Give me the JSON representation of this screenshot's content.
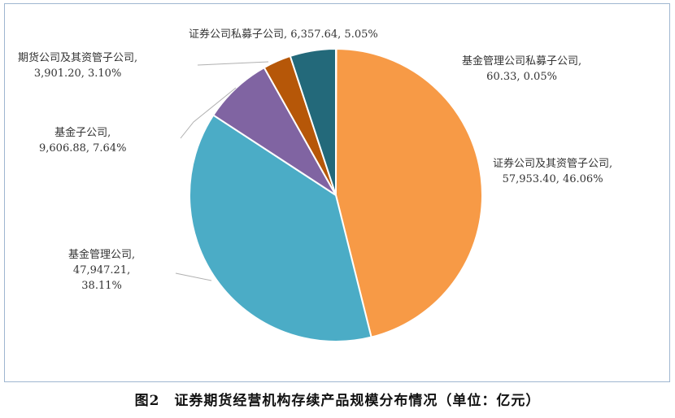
{
  "chart_data": {
    "type": "pie",
    "start_angle": "12 o'clock",
    "direction": "clockwise",
    "unit": "亿元",
    "slices": [
      {
        "name": "基金管理公司私募子公司",
        "value": 60.33,
        "value_label": "60.33",
        "percent": 0.05,
        "percent_label": "0.05%",
        "color": "#E9E9E9"
      },
      {
        "name": "证券公司及其资管子公司",
        "value": 57953.4,
        "value_label": "57,953.40",
        "percent": 46.06,
        "percent_label": "46.06%",
        "color": "#F79A46"
      },
      {
        "name": "基金管理公司",
        "value": 47947.21,
        "value_label": "47,947.21",
        "percent": 38.11,
        "percent_label": "38.11%",
        "color": "#4BACC6"
      },
      {
        "name": "基金子公司",
        "value": 9606.88,
        "value_label": "9,606.88",
        "percent": 7.64,
        "percent_label": "7.64%",
        "color": "#8064A2"
      },
      {
        "name": "期货公司及其资管子公司",
        "value": 3901.2,
        "value_label": "3,901.20",
        "percent": 3.1,
        "percent_label": "3.10%",
        "color": "#B65708"
      },
      {
        "name": "证券公司私募子公司",
        "value": 6357.64,
        "value_label": "6,357.64",
        "percent": 5.05,
        "percent_label": "5.05%",
        "color": "#23697A"
      }
    ],
    "labels": {
      "s0_line1": "基金管理公司私募子公司,",
      "s0_line2": "60.33, 0.05%",
      "s1_line1": "证券公司及其资管子公司,",
      "s1_line2": "57,953.40, 46.06%",
      "s2_line1": "基金管理公司,",
      "s2_line2": "47,947.21,",
      "s2_line3": "38.11%",
      "s3_line1": "基金子公司,",
      "s3_line2": "9,606.88, 7.64%",
      "s4_line1": "期货公司及其资管子公司,",
      "s4_line2": "3,901.20, 3.10%",
      "s5_line1": "证券公司私募子公司, 6,357.64, 5.05%"
    },
    "caption": "图2　证券期货经营机构存续产品规模分布情况（单位：亿元）"
  }
}
